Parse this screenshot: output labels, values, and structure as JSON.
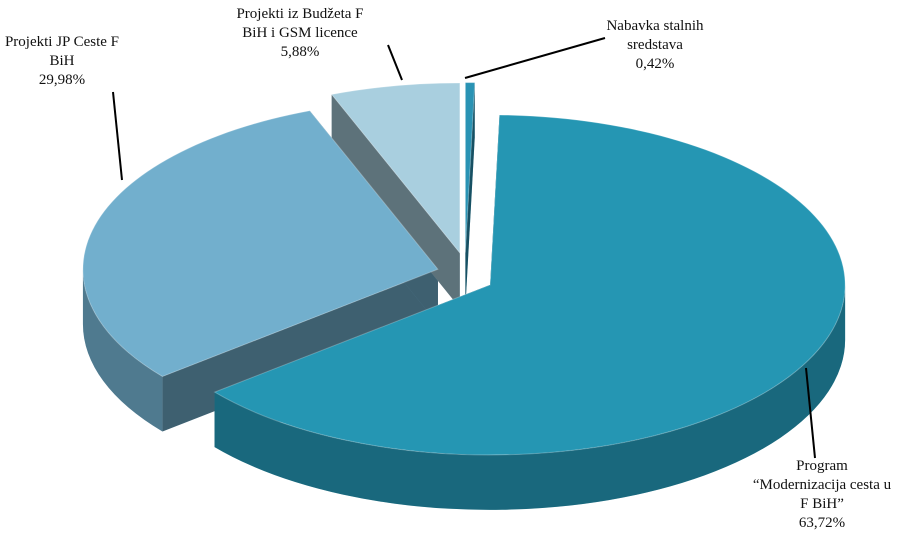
{
  "chart_data": {
    "type": "pie",
    "categories": [
      "Nabavka stalnih\nsredstava",
      "Program\n“Modernizacija cesta u\nF BiH”",
      "Projekti JP Ceste F\nBiH",
      "Projekti iz Budžeta F\nBiH i GSM licence"
    ],
    "values": [
      0.42,
      63.72,
      29.98,
      5.88
    ],
    "value_labels": [
      "0,42%",
      "63,72%",
      "29,98%",
      "5,88%"
    ],
    "colors": [
      "#2a93b4",
      "#2596b3",
      "#72afcd",
      "#a9cfdf"
    ]
  }
}
